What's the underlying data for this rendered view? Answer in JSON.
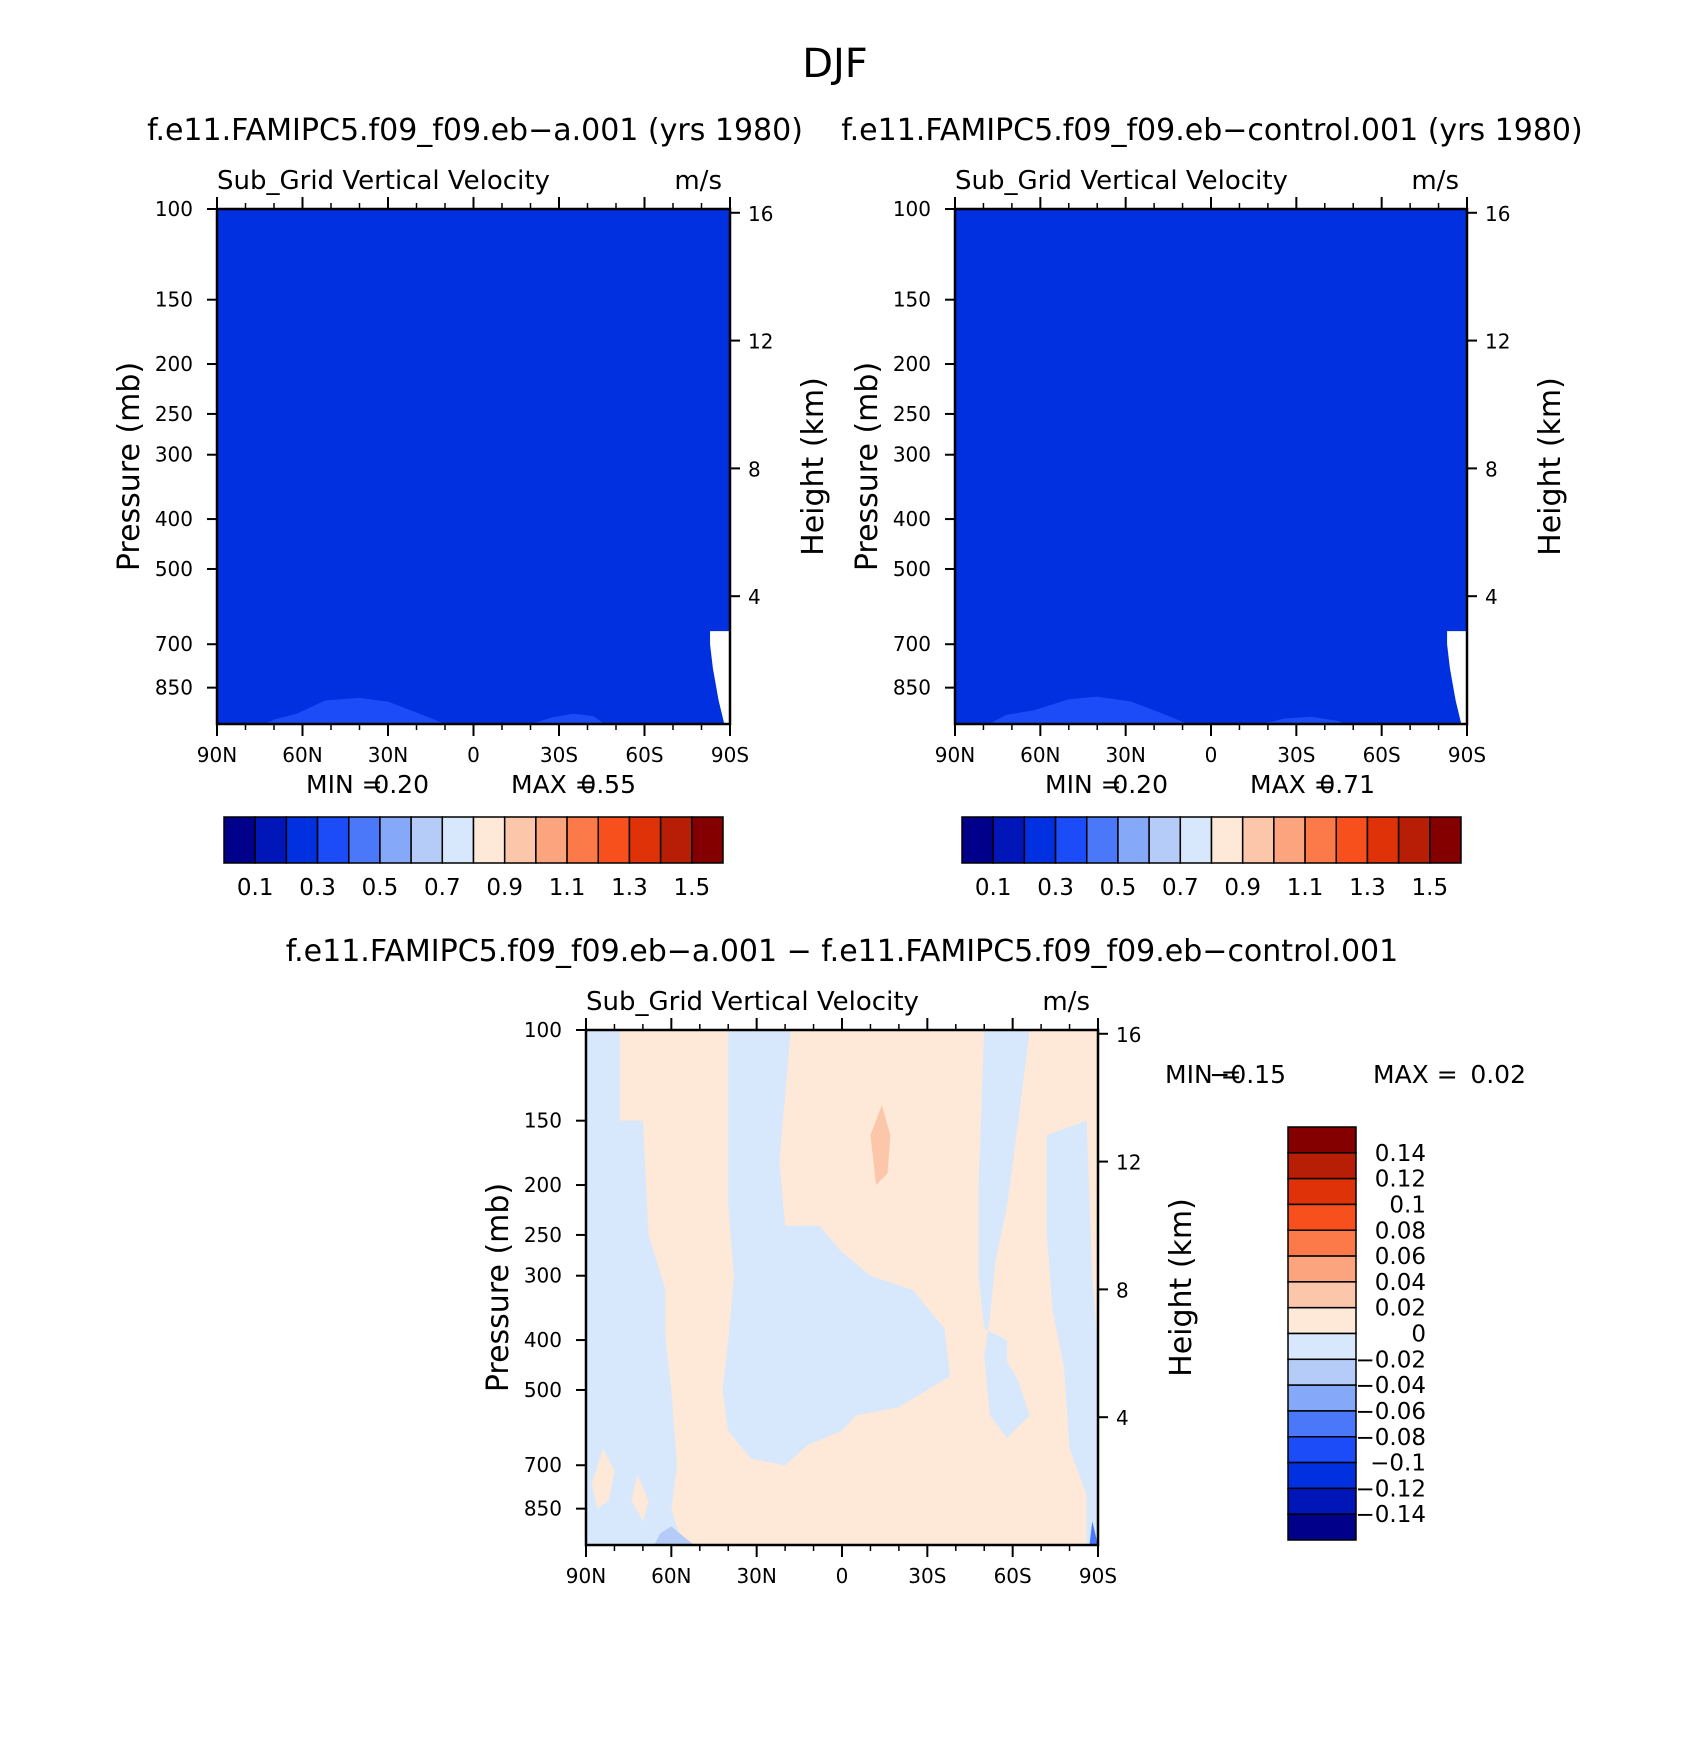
{
  "figure": {
    "title": "DJF"
  },
  "chart_data": [
    {
      "type": "heatmap",
      "panel": "top-left",
      "case_title": "f.e11.FAMIPC5.f09_f09.eb−a.001 (yrs 1980)",
      "variable": "Sub_Grid Vertical Velocity",
      "units": "m/s",
      "ylabel": "Pressure (mb)",
      "y2label": "Height (km)",
      "x_ticks": [
        "90N",
        "60N",
        "30N",
        "0",
        "30S",
        "60S",
        "90S"
      ],
      "y_ticks": [
        "100",
        "150",
        "200",
        "250",
        "300",
        "400",
        "500",
        "700",
        "850"
      ],
      "y2_ticks": [
        "16",
        "12",
        "8",
        "4"
      ],
      "xlim": [
        90,
        -90
      ],
      "ylim_mb": [
        100,
        1000
      ],
      "stats": {
        "min_label": "MIN =",
        "min": "0.20",
        "max_label": "MAX =",
        "max": "0.55"
      },
      "fill_value_range": "0.3 - 0.4",
      "colorbar": {
        "labels": [
          "0.1",
          "0.3",
          "0.5",
          "0.7",
          "0.9",
          "1.1",
          "1.3",
          "1.5"
        ],
        "colors": [
          "#00008a",
          "#0016b8",
          "#0030e0",
          "#1c4cf8",
          "#4a78f8",
          "#86a8f8",
          "#b6ccf8",
          "#d8e8fc",
          "#fee8d8",
          "#fcc6aa",
          "#fca47e",
          "#fc7a4a",
          "#f8501c",
          "#e03208",
          "#b81e06",
          "#840000"
        ]
      }
    },
    {
      "type": "heatmap",
      "panel": "top-right",
      "case_title": "f.e11.FAMIPC5.f09_f09.eb−control.001 (yrs 1980)",
      "variable": "Sub_Grid Vertical Velocity",
      "units": "m/s",
      "ylabel": "Pressure (mb)",
      "y2label": "Height (km)",
      "x_ticks": [
        "90N",
        "60N",
        "30N",
        "0",
        "30S",
        "60S",
        "90S"
      ],
      "y_ticks": [
        "100",
        "150",
        "200",
        "250",
        "300",
        "400",
        "500",
        "700",
        "850"
      ],
      "y2_ticks": [
        "16",
        "12",
        "8",
        "4"
      ],
      "xlim": [
        90,
        -90
      ],
      "ylim_mb": [
        100,
        1000
      ],
      "stats": {
        "min_label": "MIN =",
        "min": "0.20",
        "max_label": "MAX =",
        "max": "0.71"
      },
      "fill_value_range": "0.3 - 0.4",
      "colorbar": {
        "labels": [
          "0.1",
          "0.3",
          "0.5",
          "0.7",
          "0.9",
          "1.1",
          "1.3",
          "1.5"
        ],
        "colors": [
          "#00008a",
          "#0016b8",
          "#0030e0",
          "#1c4cf8",
          "#4a78f8",
          "#86a8f8",
          "#b6ccf8",
          "#d8e8fc",
          "#fee8d8",
          "#fcc6aa",
          "#fca47e",
          "#fc7a4a",
          "#f8501c",
          "#e03208",
          "#b81e06",
          "#840000"
        ]
      }
    },
    {
      "type": "heatmap",
      "panel": "bottom",
      "case_title": "f.e11.FAMIPC5.f09_f09.eb−a.001 − f.e11.FAMIPC5.f09_f09.eb−control.001",
      "variable": "Sub_Grid Vertical Velocity",
      "units": "m/s",
      "ylabel": "Pressure (mb)",
      "y2label": "Height (km)",
      "x_ticks": [
        "90N",
        "60N",
        "30N",
        "0",
        "30S",
        "60S",
        "90S"
      ],
      "y_ticks": [
        "100",
        "150",
        "200",
        "250",
        "300",
        "400",
        "500",
        "700",
        "850"
      ],
      "y2_ticks": [
        "16",
        "12",
        "8",
        "4"
      ],
      "xlim": [
        90,
        -90
      ],
      "ylim_mb": [
        100,
        1000
      ],
      "stats": {
        "min_label": "MIN =",
        "min": "−0.15",
        "max_label": "MAX =",
        "max": "0.02"
      },
      "colorbar": {
        "labels": [
          "0.14",
          "0.12",
          "0.1",
          "0.08",
          "0.06",
          "0.04",
          "0.02",
          "0",
          "−0.02",
          "−0.04",
          "−0.06",
          "−0.08",
          "−0.1",
          "−0.12",
          "−0.14"
        ],
        "colors": [
          "#840000",
          "#b81e06",
          "#e03208",
          "#f8501c",
          "#fc7a4a",
          "#fca47e",
          "#fcc6aa",
          "#fee8d8",
          "#d8e8fc",
          "#b6ccf8",
          "#86a8f8",
          "#4a78f8",
          "#1c4cf8",
          "#0030e0",
          "#0016b8",
          "#00008a"
        ]
      }
    }
  ]
}
